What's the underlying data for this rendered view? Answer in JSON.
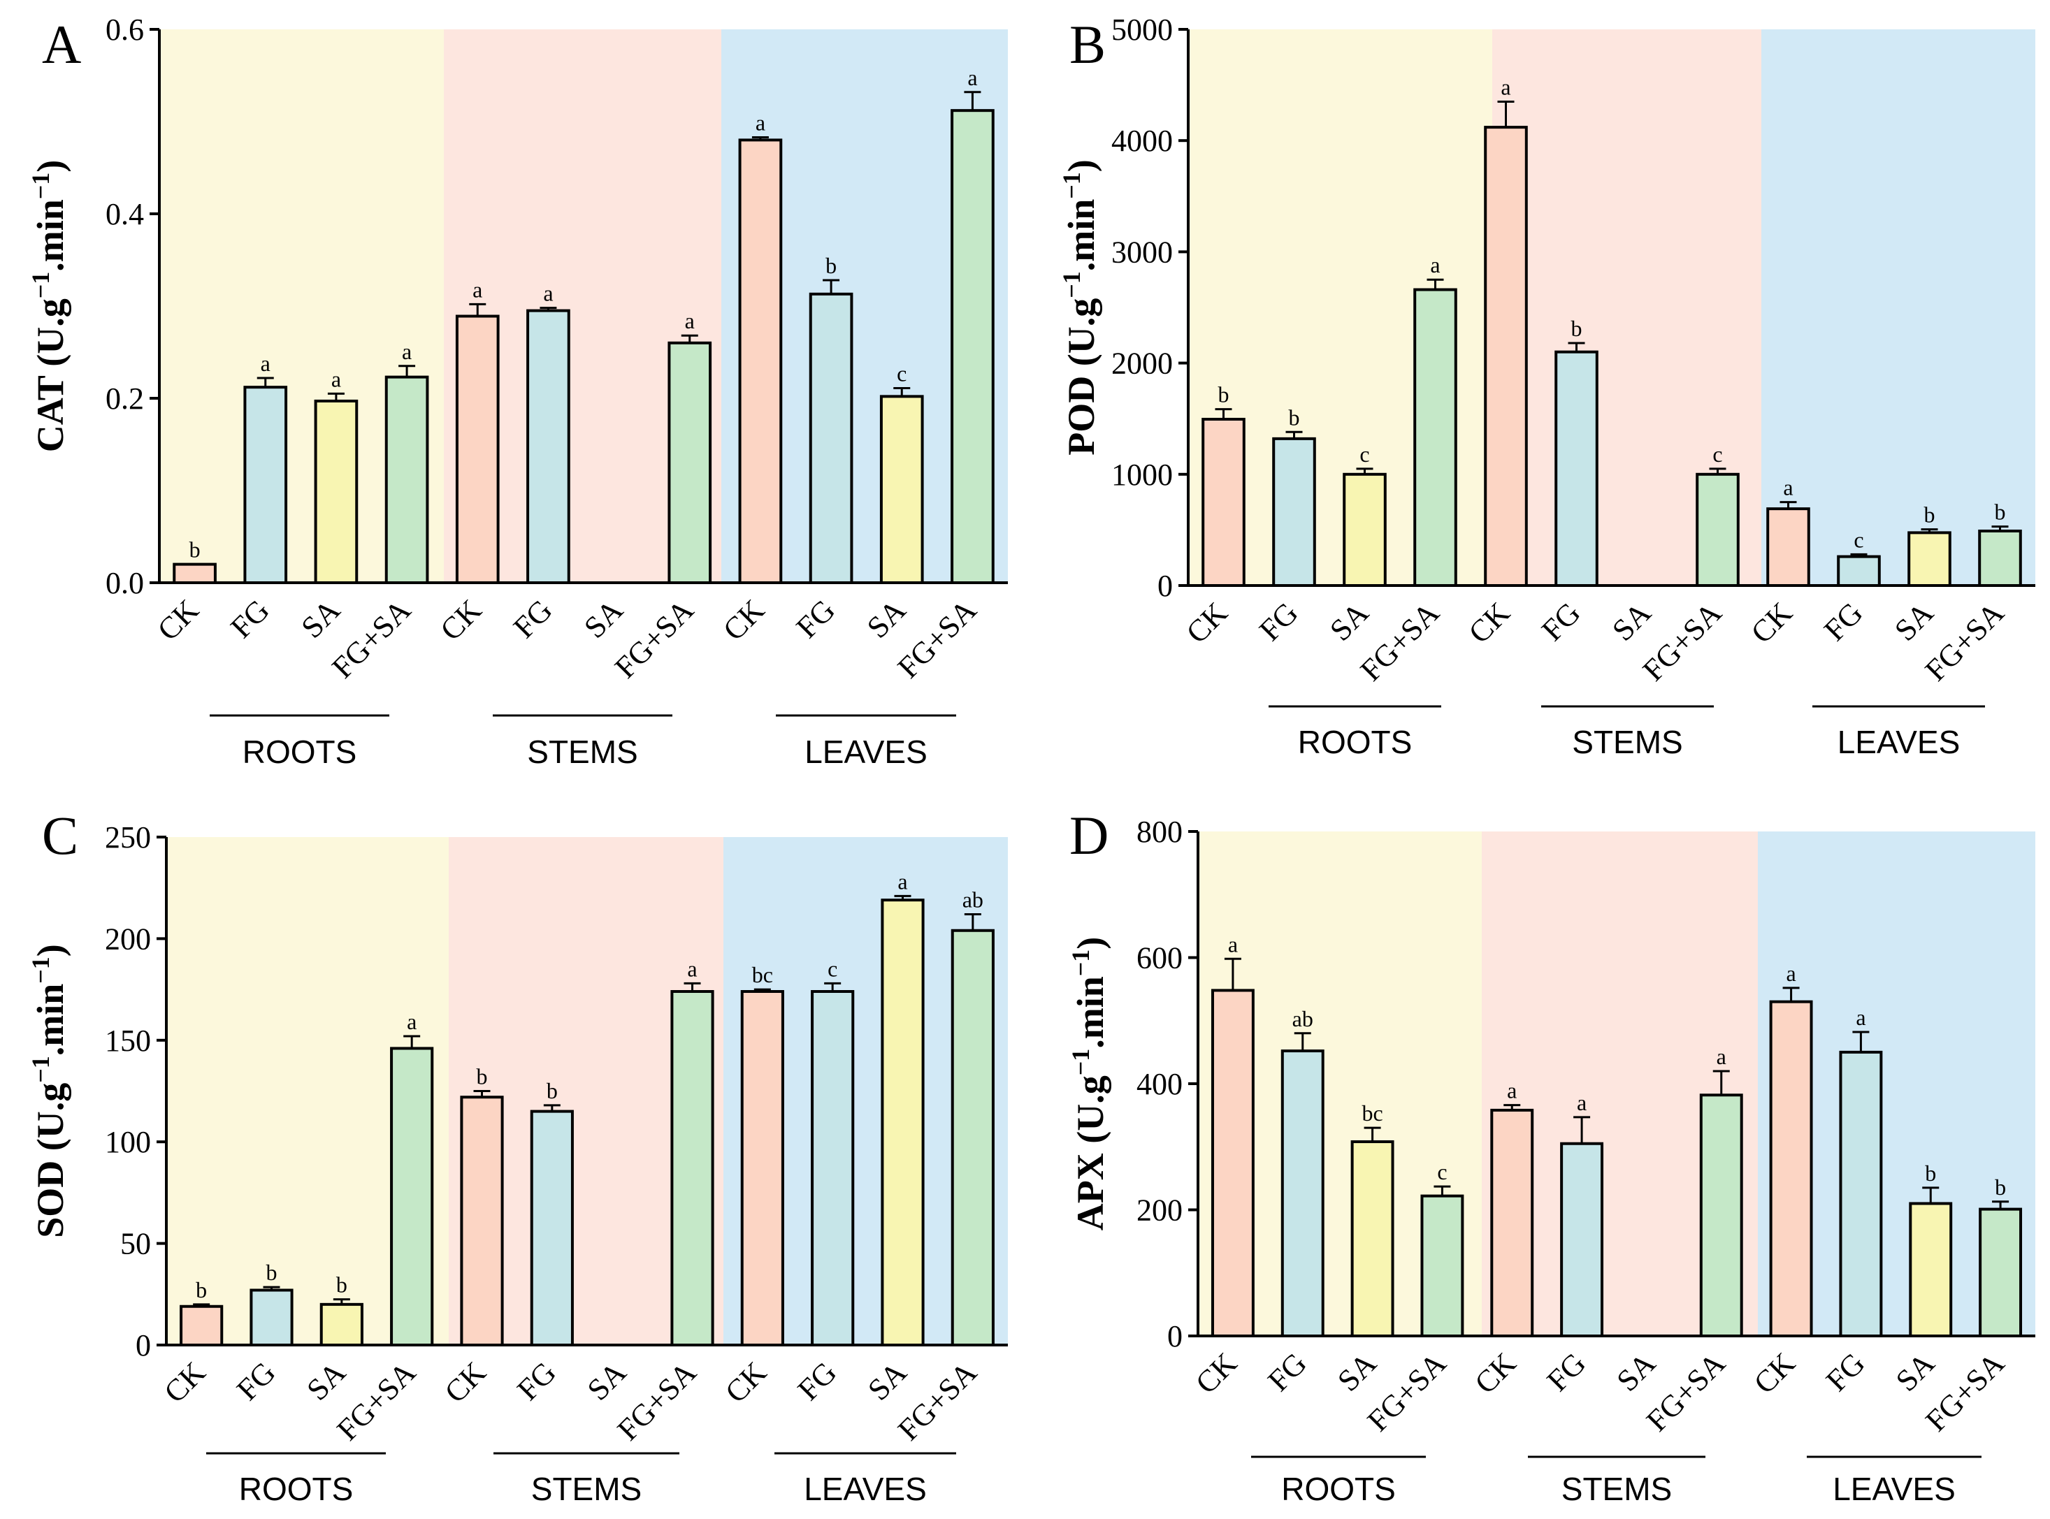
{
  "figure": {
    "treatments": [
      "CK",
      "FG",
      "SA",
      "FG+SA"
    ],
    "groups": [
      "ROOTS",
      "STEMS",
      "LEAVES"
    ],
    "colors": {
      "roots_bg": "#fcf8dc",
      "stems_bg": "#fde6df",
      "leaves_bg": "#d2e9f6",
      "CK": "#fcd5c4",
      "FG": "#c6e5e8",
      "SA": "#f8f5b2",
      "FG+SA": "#c5e8c8",
      "edge": "#000000"
    }
  },
  "chart_data": [
    {
      "panel": "A",
      "type": "bar",
      "ylabel": "CAT (U.g",
      "ylabel_sup1": "−1",
      "ylabel_mid": ".min",
      "ylabel_sup2": "−1",
      "ylabel_end": ")",
      "ylim": [
        0,
        0.6
      ],
      "yticks": [
        0.0,
        0.2,
        0.4,
        0.6
      ],
      "yticklabels": [
        "0.0",
        "0.2",
        "0.4",
        "0.6"
      ],
      "categories": [
        "CK",
        "FG",
        "SA",
        "FG+SA",
        "CK",
        "FG",
        "SA",
        "FG+SA",
        "CK",
        "FG",
        "SA",
        "FG+SA"
      ],
      "values": [
        0.02,
        0.212,
        0.197,
        0.223,
        0.289,
        0.295,
        null,
        0.26,
        0.48,
        0.313,
        0.202,
        0.512
      ],
      "errors": [
        0,
        0.01,
        0.008,
        0.012,
        0.013,
        0.003,
        0,
        0.008,
        0.003,
        0.015,
        0.009,
        0.02
      ],
      "letters": [
        "b",
        "a",
        "a",
        "a",
        "a",
        "a",
        "",
        "a",
        "a",
        "b",
        "c",
        "a"
      ]
    },
    {
      "panel": "B",
      "type": "bar",
      "ylabel": "POD (U.g",
      "ylabel_sup1": "−1",
      "ylabel_mid": ".min",
      "ylabel_sup2": "−1",
      "ylabel_end": ")",
      "ylim": [
        0,
        5000
      ],
      "yticks": [
        0,
        1000,
        2000,
        3000,
        4000,
        5000
      ],
      "yticklabels": [
        "0",
        "1000",
        "2000",
        "3000",
        "4000",
        "5000"
      ],
      "categories": [
        "CK",
        "FG",
        "SA",
        "FG+SA",
        "CK",
        "FG",
        "SA",
        "FG+SA",
        "CK",
        "FG",
        "SA",
        "FG+SA"
      ],
      "values": [
        1495,
        1320,
        1000,
        2660,
        4120,
        2100,
        null,
        1000,
        690,
        260,
        475,
        490
      ],
      "errors": [
        90,
        60,
        50,
        90,
        230,
        80,
        0,
        50,
        60,
        20,
        30,
        40
      ],
      "letters": [
        "b",
        "b",
        "c",
        "a",
        "a",
        "b",
        "",
        "c",
        "a",
        "c",
        "b",
        "b"
      ]
    },
    {
      "panel": "C",
      "type": "bar",
      "ylabel": "SOD (U.g",
      "ylabel_sup1": "−1",
      "ylabel_mid": ".min",
      "ylabel_sup2": "−1",
      "ylabel_end": ")",
      "ylim": [
        0,
        250
      ],
      "yticks": [
        0,
        50,
        100,
        150,
        200,
        250
      ],
      "yticklabels": [
        "0",
        "50",
        "100",
        "150",
        "200",
        "250"
      ],
      "categories": [
        "CK",
        "FG",
        "SA",
        "FG+SA",
        "CK",
        "FG",
        "SA",
        "FG+SA",
        "CK",
        "FG",
        "SA",
        "FG+SA"
      ],
      "values": [
        19,
        27,
        20,
        146,
        122,
        115,
        null,
        174,
        174,
        174,
        219,
        204
      ],
      "errors": [
        1,
        1.5,
        2.5,
        6,
        3,
        3,
        0,
        4,
        1,
        4,
        2,
        8
      ],
      "letters": [
        "b",
        "b",
        "b",
        "a",
        "b",
        "b",
        "",
        "a",
        "bc",
        "c",
        "a",
        "ab"
      ]
    },
    {
      "panel": "D",
      "type": "bar",
      "ylabel": "APX (U.g",
      "ylabel_sup1": "−1",
      "ylabel_mid": ".min",
      "ylabel_sup2": "−1",
      "ylabel_end": ")",
      "ylim": [
        0,
        800
      ],
      "yticks": [
        0,
        200,
        400,
        600,
        800
      ],
      "yticklabels": [
        "0",
        "200",
        "400",
        "600",
        "800"
      ],
      "categories": [
        "CK",
        "FG",
        "SA",
        "FG+SA",
        "CK",
        "FG",
        "SA",
        "FG+SA",
        "CK",
        "FG",
        "SA",
        "FG+SA"
      ],
      "values": [
        548,
        452,
        308,
        222,
        358,
        305,
        null,
        382,
        530,
        450,
        210,
        201
      ],
      "errors": [
        50,
        28,
        22,
        15,
        8,
        42,
        0,
        38,
        22,
        32,
        25,
        12
      ],
      "letters": [
        "a",
        "ab",
        "bc",
        "c",
        "a",
        "a",
        "",
        "a",
        "a",
        "a",
        "b",
        "b"
      ]
    }
  ]
}
